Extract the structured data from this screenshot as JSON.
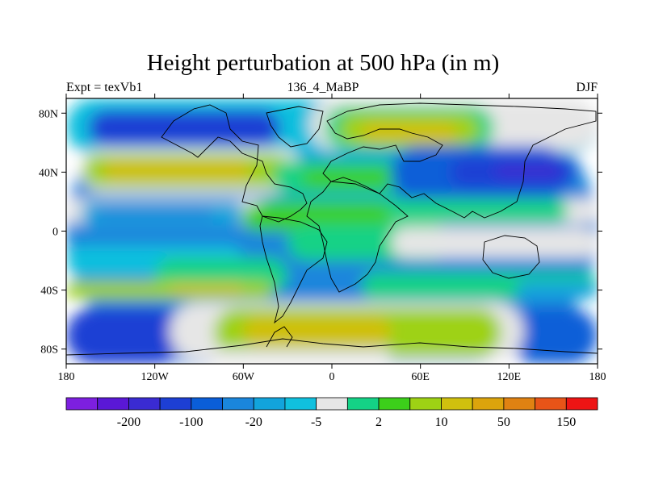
{
  "chart_data": {
    "type": "heatmap",
    "title": "Height perturbation at 500 hPa (in m)",
    "subtitle_left": "Expt = texVb1",
    "subtitle_center": "136_4_MaBP",
    "subtitle_right": "DJF",
    "x_range": [
      -180,
      180
    ],
    "y_range": [
      -90,
      90
    ],
    "x_ticks": [
      {
        "value": -180,
        "label": "180"
      },
      {
        "value": -120,
        "label": "120W"
      },
      {
        "value": -60,
        "label": "60W"
      },
      {
        "value": 0,
        "label": "0"
      },
      {
        "value": 60,
        "label": "60E"
      },
      {
        "value": 120,
        "label": "120E"
      },
      {
        "value": 180,
        "label": "180"
      }
    ],
    "y_ticks": [
      {
        "value": 80,
        "label": "80N"
      },
      {
        "value": 40,
        "label": "40N"
      },
      {
        "value": 0,
        "label": "0"
      },
      {
        "value": -40,
        "label": "40S"
      },
      {
        "value": -80,
        "label": "80S"
      }
    ],
    "colorbar": {
      "colors": [
        "#7d1fe0",
        "#5a18d6",
        "#3a2bd2",
        "#1d3fd4",
        "#0a5ed8",
        "#1a86dc",
        "#12a4dc",
        "#10c0de",
        "#e6e6e6",
        "#14d286",
        "#3ccf1a",
        "#9ed214",
        "#d0c00e",
        "#dca40c",
        "#e08212",
        "#e85418",
        "#ee1414"
      ],
      "labels": [
        {
          "after_index": 1,
          "label": "-200"
        },
        {
          "after_index": 3,
          "label": "-100"
        },
        {
          "after_index": 5,
          "label": "-20"
        },
        {
          "after_index": 7,
          "label": "-5"
        },
        {
          "after_index": 9,
          "label": "2"
        },
        {
          "after_index": 11,
          "label": "10"
        },
        {
          "after_index": 13,
          "label": "50"
        },
        {
          "after_index": 15,
          "label": "150"
        }
      ]
    },
    "field_regions": [
      {
        "level": 5,
        "lon": [
          -180,
          180
        ],
        "lat": [
          -90,
          90
        ]
      },
      {
        "level": 7,
        "lon": [
          -180,
          180
        ],
        "lat": [
          52,
          90
        ]
      },
      {
        "level": 3,
        "lon": [
          -165,
          -35
        ],
        "lat": [
          58,
          82
        ]
      },
      {
        "level": 8,
        "lon": [
          -15,
          180
        ],
        "lat": [
          55,
          90
        ]
      },
      {
        "level": 9,
        "lon": [
          -5,
          110
        ],
        "lat": [
          55,
          85
        ]
      },
      {
        "level": 11,
        "lon": [
          5,
          100
        ],
        "lat": [
          58,
          80
        ]
      },
      {
        "level": 12,
        "lon": [
          20,
          85
        ],
        "lat": [
          60,
          74
        ]
      },
      {
        "level": 8,
        "lon": [
          -170,
          -20
        ],
        "lat": [
          26,
          56
        ]
      },
      {
        "level": 11,
        "lon": [
          -168,
          -28
        ],
        "lat": [
          30,
          52
        ]
      },
      {
        "level": 12,
        "lon": [
          -155,
          -55
        ],
        "lat": [
          34,
          48
        ]
      },
      {
        "level": 9,
        "lon": [
          -40,
          50
        ],
        "lat": [
          25,
          48
        ]
      },
      {
        "level": 10,
        "lon": [
          -20,
          40
        ],
        "lat": [
          30,
          42
        ]
      },
      {
        "level": 4,
        "lon": [
          40,
          160
        ],
        "lat": [
          20,
          58
        ]
      },
      {
        "level": 3,
        "lon": [
          80,
          165
        ],
        "lat": [
          30,
          50
        ]
      },
      {
        "level": 2,
        "lon": [
          110,
          155
        ],
        "lat": [
          36,
          46
        ]
      },
      {
        "level": 8,
        "lon": [
          -180,
          180
        ],
        "lat": [
          5,
          22
        ]
      },
      {
        "level": 6,
        "lon": [
          -170,
          -60
        ],
        "lat": [
          4,
          20
        ]
      },
      {
        "level": 5,
        "lon": [
          -160,
          -80
        ],
        "lat": [
          8,
          16
        ]
      },
      {
        "level": 9,
        "lon": [
          -50,
          160
        ],
        "lat": [
          6,
          22
        ]
      },
      {
        "level": 10,
        "lon": [
          -60,
          40
        ],
        "lat": [
          0,
          18
        ]
      },
      {
        "level": 9,
        "lon": [
          -30,
          80
        ],
        "lat": [
          -20,
          5
        ]
      },
      {
        "level": 8,
        "lon": [
          40,
          180
        ],
        "lat": [
          -18,
          2
        ]
      },
      {
        "level": 7,
        "lon": [
          -180,
          -60
        ],
        "lat": [
          -30,
          -10
        ]
      },
      {
        "level": 9,
        "lon": [
          -120,
          -30
        ],
        "lat": [
          -42,
          -18
        ]
      },
      {
        "level": 11,
        "lon": [
          -180,
          -40
        ],
        "lat": [
          -46,
          -34
        ]
      },
      {
        "level": 12,
        "lon": [
          -110,
          -60
        ],
        "lat": [
          -42,
          -36
        ]
      },
      {
        "level": 9,
        "lon": [
          20,
          180
        ],
        "lat": [
          -46,
          -28
        ]
      },
      {
        "level": 6,
        "lon": [
          125,
          180
        ],
        "lat": [
          -46,
          -34
        ]
      },
      {
        "level": 3,
        "lon": [
          -180,
          -100
        ],
        "lat": [
          -90,
          -52
        ]
      },
      {
        "level": 4,
        "lon": [
          120,
          180
        ],
        "lat": [
          -90,
          -52
        ]
      },
      {
        "level": 8,
        "lon": [
          -110,
          130
        ],
        "lat": [
          -88,
          -48
        ]
      },
      {
        "level": 11,
        "lon": [
          -80,
          115
        ],
        "lat": [
          -85,
          -52
        ]
      },
      {
        "level": 12,
        "lon": [
          -60,
          40
        ],
        "lat": [
          -78,
          -58
        ]
      },
      {
        "level": 8,
        "lon": [
          -85,
          40
        ],
        "lat": [
          -90,
          -80
        ]
      }
    ]
  }
}
